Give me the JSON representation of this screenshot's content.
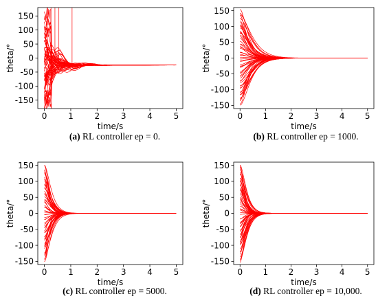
{
  "chart_data": [
    {
      "type": "line",
      "panel": "a",
      "caption_label": "(a)",
      "caption_text": "RL controller ep = 0.",
      "xlabel": "time/s",
      "ylabel": "theta/°",
      "xlim": [
        -0.25,
        5.25
      ],
      "ylim": [
        -180,
        180
      ],
      "xticks": [
        0,
        1,
        2,
        3,
        4,
        5
      ],
      "yticks": [
        -150,
        -100,
        -50,
        0,
        50,
        100,
        150
      ],
      "color": "#ff0000",
      "grid": false,
      "description_values": {
        "initial_theta_range": [
          -180,
          180
        ],
        "final_theta": -25,
        "settle_time": 3.5,
        "trajectory_count": 60
      }
    },
    {
      "type": "line",
      "panel": "b",
      "caption_label": "(b)",
      "caption_text": "RL controller ep = 1000.",
      "xlabel": "time/s",
      "ylabel": "theta/°",
      "xlim": [
        -0.25,
        5.25
      ],
      "ylim": [
        -160,
        160
      ],
      "xticks": [
        0,
        1,
        2,
        3,
        4,
        5
      ],
      "yticks": [
        -150,
        -100,
        -50,
        0,
        50,
        100,
        150
      ],
      "color": "#ff0000",
      "grid": false,
      "description_values": {
        "initial_theta_range": [
          -150,
          150
        ],
        "final_theta": 0,
        "settle_time": 0.9,
        "trajectory_count": 60
      }
    },
    {
      "type": "line",
      "panel": "c",
      "caption_label": "(c)",
      "caption_text": "RL controller ep = 5000.",
      "xlabel": "time/s",
      "ylabel": "theta/°",
      "xlim": [
        -0.25,
        5.25
      ],
      "ylim": [
        -160,
        160
      ],
      "xticks": [
        0,
        1,
        2,
        3,
        4,
        5
      ],
      "yticks": [
        -150,
        -100,
        -50,
        0,
        50,
        100,
        150
      ],
      "color": "#ff0000",
      "grid": false,
      "description_values": {
        "initial_theta_range": [
          -150,
          150
        ],
        "final_theta": 0,
        "settle_time": 0.5,
        "trajectory_count": 60
      }
    },
    {
      "type": "line",
      "panel": "d",
      "caption_label": "(d)",
      "caption_text": "RL controller ep = 10,000.",
      "xlabel": "time/s",
      "ylabel": "theta/°",
      "xlim": [
        -0.25,
        5.25
      ],
      "ylim": [
        -160,
        160
      ],
      "xticks": [
        0,
        1,
        2,
        3,
        4,
        5
      ],
      "yticks": [
        -150,
        -100,
        -50,
        0,
        50,
        100,
        150
      ],
      "color": "#ff0000",
      "grid": false,
      "description_values": {
        "initial_theta_range": [
          -150,
          150
        ],
        "final_theta": 0,
        "settle_time": 0.5,
        "trajectory_count": 60
      }
    }
  ]
}
